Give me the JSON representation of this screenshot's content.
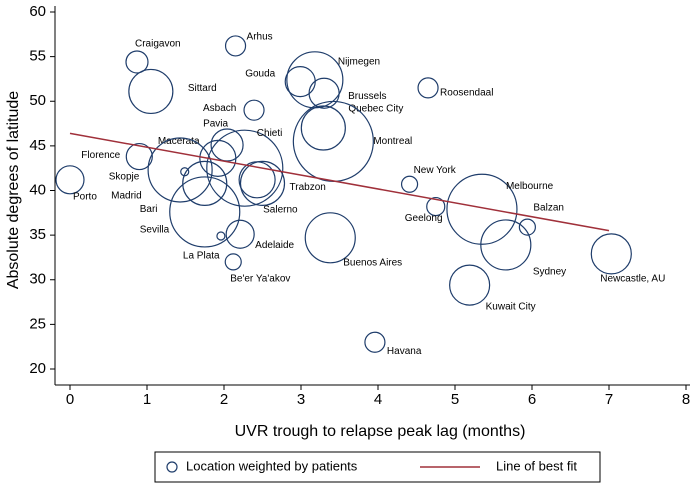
{
  "chart_data": {
    "type": "scatter",
    "xlabel": "UVR trough to relapse peak lag (months)",
    "ylabel": "Absolute degrees of latitude",
    "xlim": [
      0,
      8
    ],
    "xticks": [
      0,
      1,
      2,
      3,
      4,
      5,
      6,
      7,
      8
    ],
    "ylim": [
      20,
      60
    ],
    "yticks": [
      20,
      25,
      30,
      35,
      40,
      45,
      50,
      55,
      60
    ],
    "series": [
      {
        "name": "Location weighted by patients",
        "color": "#1f3d6b",
        "labels": [
          "Porto",
          "Craigavon",
          "Arhus",
          "Sittard",
          "Gouda",
          "Nijmegen",
          "Brussels",
          "Roosendaal",
          "Asbach",
          "Quebec City",
          "Montreal",
          "Pavia",
          "Chieti",
          "Macerata",
          "Florence",
          "Skopje",
          "Madrid",
          "Bari",
          "Sevilla",
          "Trabzon",
          "Salerno",
          "New York",
          "Geelong",
          "Melbourne",
          "Balzan",
          "Sydney",
          "Newcastle, AU",
          "Kuwait City",
          "Havana",
          "Buenos Aires",
          "Adelaide",
          "La Plata",
          "Be'er Ya'akov"
        ],
        "x": [
          0,
          0.87,
          2.15,
          1.05,
          2.99,
          3.18,
          3.3,
          4.65,
          2.39,
          3.29,
          3.42,
          2.04,
          2.27,
          1.92,
          0.9,
          1.49,
          1.43,
          1.75,
          1.75,
          2.5,
          2.43,
          4.41,
          4.75,
          5.35,
          5.94,
          5.66,
          7.03,
          5.19,
          3.96,
          3.38,
          2.21,
          1.96,
          2.12
        ],
        "values": [
          41.2,
          54.4,
          56.2,
          51.1,
          52.2,
          52.4,
          50.9,
          51.5,
          49.0,
          47.0,
          45.5,
          45.1,
          42.5,
          43.6,
          43.8,
          42.1,
          42.3,
          40.8,
          37.6,
          40.8,
          41.2,
          40.7,
          38.2,
          37.9,
          35.9,
          33.9,
          32.9,
          29.4,
          23.0,
          34.7,
          35.1,
          34.9,
          32.0
        ],
        "sizes": [
          14,
          11,
          10,
          22,
          15,
          28,
          15,
          10,
          10,
          22,
          40,
          16,
          38,
          18,
          13,
          4,
          32,
          22,
          35,
          22,
          18,
          8,
          9,
          35,
          8,
          25,
          20,
          20,
          10,
          25,
          14,
          4,
          8
        ]
      }
    ],
    "fit": {
      "name": "Line of best fit",
      "color": "#a0303a",
      "x": [
        0,
        7
      ],
      "values": [
        46.4,
        35.5
      ]
    }
  }
}
